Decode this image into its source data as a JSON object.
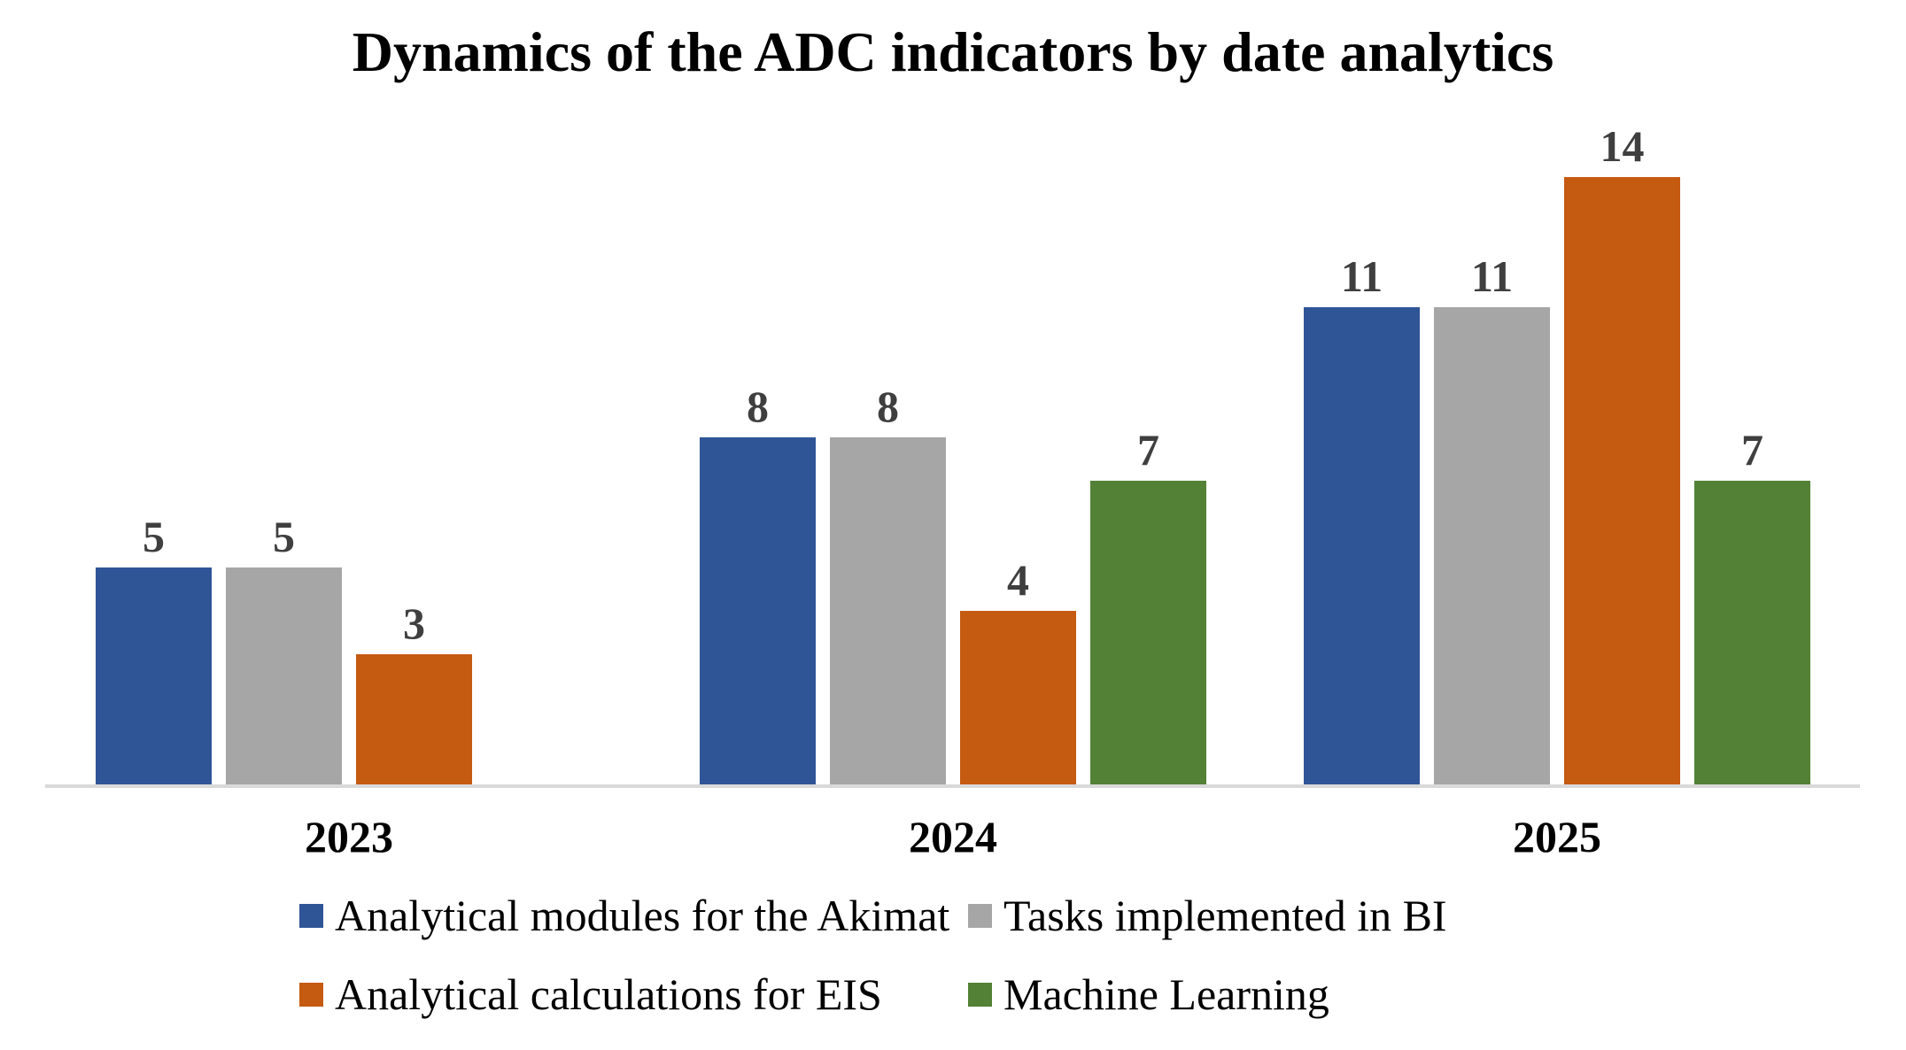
{
  "title": "Dynamics of the ADC indicators by date analytics",
  "colors": {
    "background": "#FFFFFF",
    "axis_line": "#D9D9D9",
    "value_label": "#3F3F3F",
    "text": "#000000"
  },
  "chart_data": {
    "type": "bar",
    "title": "Dynamics of the ADC indicators by date analytics",
    "categories": [
      "2023",
      "2024",
      "2025"
    ],
    "series": [
      {
        "name": "Analytical modules for the Akimat",
        "color": "#2F5597",
        "values": [
          5,
          8,
          11
        ]
      },
      {
        "name": "Tasks implemented in BI",
        "color": "#A6A6A6",
        "values": [
          5,
          8,
          11
        ]
      },
      {
        "name": "Analytical calculations for EIS",
        "color": "#C55A11",
        "values": [
          3,
          4,
          14
        ]
      },
      {
        "name": "Machine Learning",
        "color": "#538135",
        "values": [
          0,
          7,
          7
        ]
      }
    ],
    "ylim": [
      0,
      14
    ],
    "grid": false,
    "y_axis_visible": false,
    "bar_labels": true,
    "zero_value_bars_hidden": true,
    "legend_position": "bottom",
    "legend_rows": [
      [
        0,
        1
      ],
      [
        2,
        3
      ]
    ]
  }
}
